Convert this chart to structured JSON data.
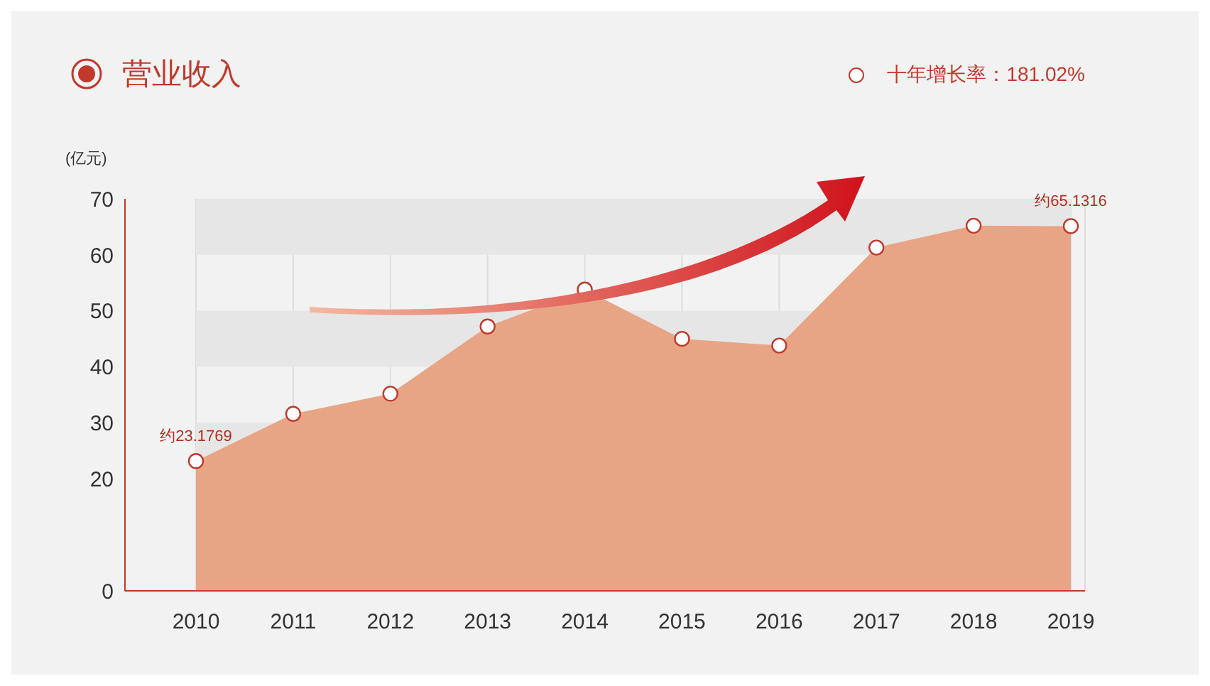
{
  "chart_data": {
    "type": "area",
    "title": "营业收入",
    "ylabel": "(亿元)",
    "categories": [
      "2010",
      "2011",
      "2012",
      "2013",
      "2014",
      "2015",
      "2016",
      "2017",
      "2018",
      "2019"
    ],
    "series": [
      {
        "color": "#e8a585",
        "values": [
          23.1769,
          31.6,
          35.2,
          47.2,
          53.8,
          45.0,
          43.8,
          61.3,
          65.2,
          65.1316
        ],
        "value_labels": [
          "约23.1769",
          null,
          null,
          null,
          null,
          null,
          null,
          null,
          null,
          "约65.1316"
        ]
      }
    ],
    "ylim": [
      0,
      70
    ],
    "yticks": [
      0,
      20,
      30,
      40,
      50,
      60,
      70
    ],
    "marker": "circle",
    "grid": "x",
    "bands": [
      {
        "axis": "y",
        "from": 20,
        "to": 30,
        "color": "#e6e6e6"
      },
      {
        "axis": "y",
        "from": 40,
        "to": 50,
        "color": "#e6e6e6"
      },
      {
        "axis": "y",
        "from": 60,
        "to": 70,
        "color": "#e6e6e6"
      }
    ],
    "annotations": [
      "十年增长率：181.02%"
    ]
  }
}
